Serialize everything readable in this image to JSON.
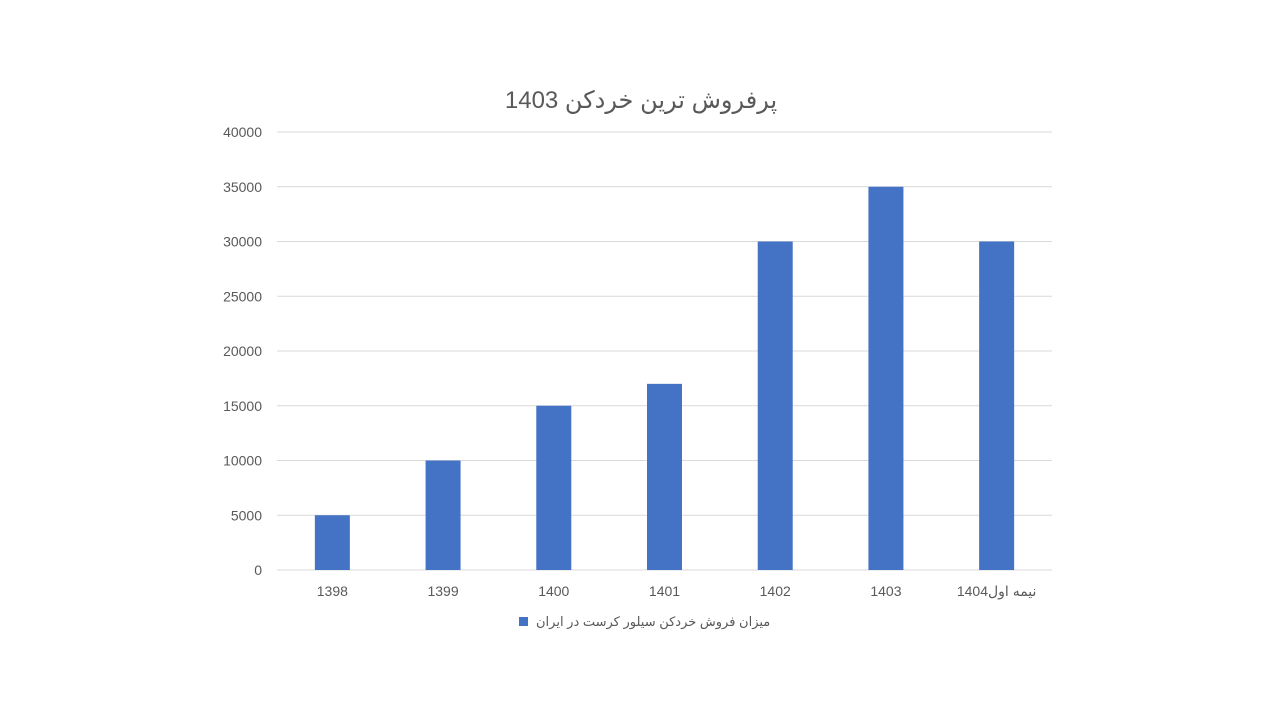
{
  "chart_data": {
    "type": "bar",
    "title": "پرفروش ترین خردکن 1403",
    "xlabel": "",
    "ylabel": "",
    "categories": [
      "1398",
      "1399",
      "1400",
      "1401",
      "1402",
      "1403",
      "نیمه اول1404"
    ],
    "series": [
      {
        "name": "میزان فروش خردکن سیلور کرست در ایران",
        "values": [
          5000,
          10000,
          15000,
          17000,
          30000,
          35000,
          30000
        ],
        "color": "#4472C4"
      }
    ],
    "ylim": [
      0,
      40000
    ],
    "yticks": [
      "0",
      "5000",
      "10000",
      "15000",
      "20000",
      "25000",
      "30000",
      "35000",
      "40000"
    ],
    "grid": true,
    "legend_position": "bottom"
  }
}
